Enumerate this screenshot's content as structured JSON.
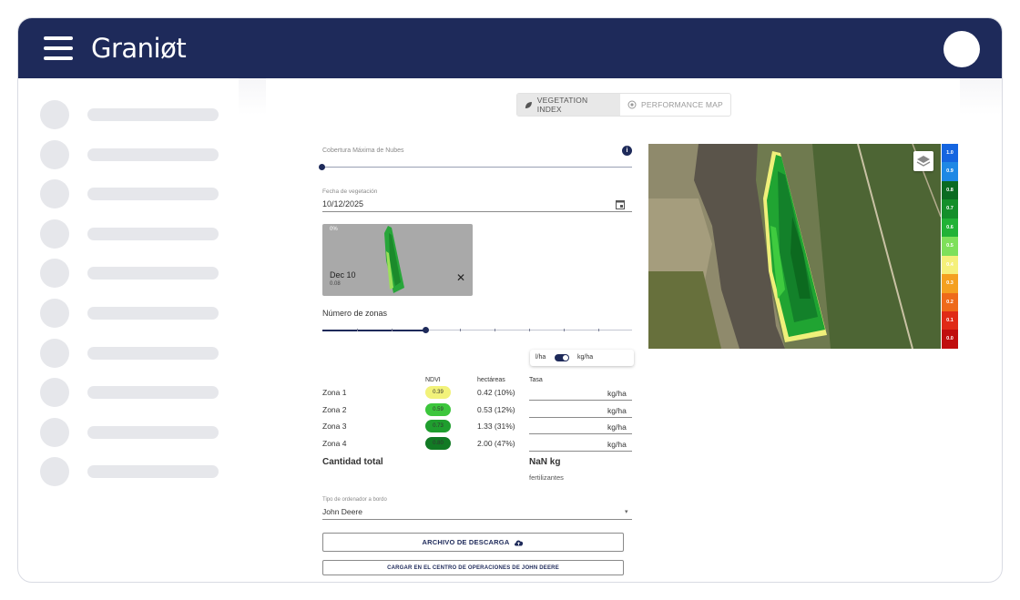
{
  "header": {
    "logo": "Graniøt"
  },
  "sidebar": {
    "item_count": 10
  },
  "tabs": [
    {
      "label": "VEGETATION INDEX",
      "icon": "leaf-icon",
      "active": true
    },
    {
      "label": "PERFORMANCE MAP",
      "icon": "target-icon",
      "active": false
    }
  ],
  "clouds": {
    "label": "Cobertura Máxima de Nubes",
    "value_fraction": 0.0
  },
  "date": {
    "label": "Fecha de vegetación",
    "value": "10/12/2025"
  },
  "thumbnail": {
    "percent": "0%",
    "date": "Dec 10",
    "sub": "0.08"
  },
  "zones_slider": {
    "label": "Número de zonas",
    "value_fraction": 0.33
  },
  "units": {
    "left": "l/ha",
    "right": "kg/ha"
  },
  "table": {
    "headers": {
      "ndvi": "NDVI",
      "ha": "hectáreas",
      "rate": "Tasa"
    },
    "rows": [
      {
        "zone": "Zona 1",
        "ndvi": "0.39",
        "ha": "0.42 (10%)",
        "unit": "kg/ha",
        "color": "#f2f27a"
      },
      {
        "zone": "Zona 2",
        "ndvi": "0.59",
        "ha": "0.53 (12%)",
        "unit": "kg/ha",
        "color": "#3cc63c"
      },
      {
        "zone": "Zona 3",
        "ndvi": "0.73",
        "ha": "1.33 (31%)",
        "unit": "kg/ha",
        "color": "#1f9e2e"
      },
      {
        "zone": "Zona 4",
        "ndvi": "0.80",
        "ha": "2.00 (47%)",
        "unit": "kg/ha",
        "color": "#127a24"
      }
    ]
  },
  "total": {
    "label": "Cantidad total",
    "value": "NaN kg",
    "sub": "fertilizantes"
  },
  "controller": {
    "label": "Tipo de ordenador a bordo",
    "value": "John Deere"
  },
  "buttons": {
    "download": "ARCHIVO DE DESCARGA",
    "upload": "CARGAR EN EL CENTRO DE OPERACIONES DE JOHN DEERE"
  },
  "legend": [
    {
      "label": "1.0",
      "color": "#1565e0"
    },
    {
      "label": "0.9",
      "color": "#1e88e5"
    },
    {
      "label": "0.8",
      "color": "#0b6b22"
    },
    {
      "label": "0.7",
      "color": "#148f2a"
    },
    {
      "label": "0.6",
      "color": "#21b236"
    },
    {
      "label": "0.5",
      "color": "#7ee05a"
    },
    {
      "label": "0.4",
      "color": "#f5f07a"
    },
    {
      "label": "0.3",
      "color": "#f4a020"
    },
    {
      "label": "0.2",
      "color": "#ee6a1a"
    },
    {
      "label": "0.1",
      "color": "#e02b17"
    },
    {
      "label": "0.0",
      "color": "#c00e0e"
    }
  ]
}
